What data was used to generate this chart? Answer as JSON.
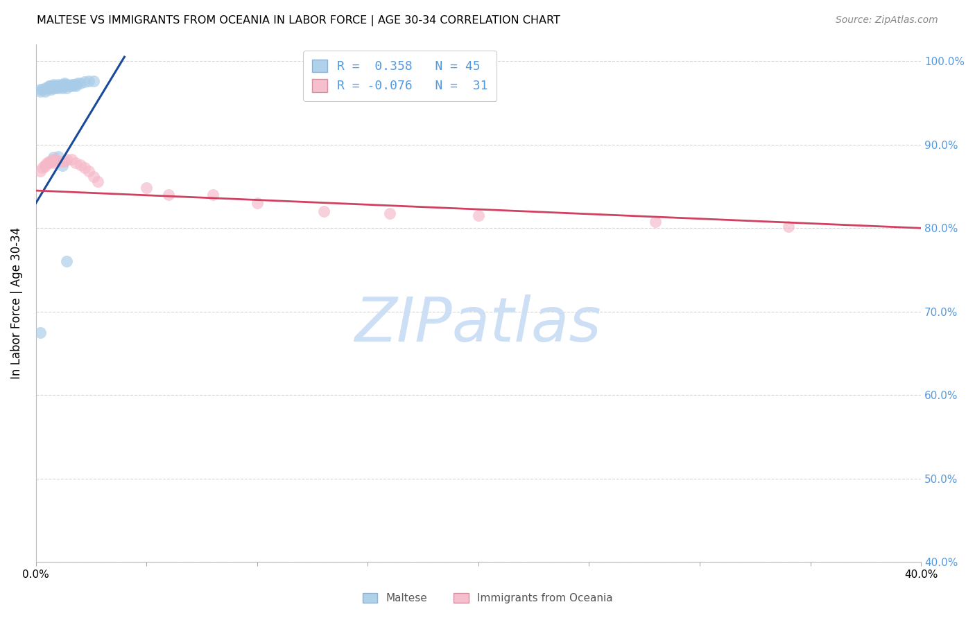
{
  "title": "MALTESE VS IMMIGRANTS FROM OCEANIA IN LABOR FORCE | AGE 30-34 CORRELATION CHART",
  "source": "Source: ZipAtlas.com",
  "ylabel": "In Labor Force | Age 30-34",
  "xlim": [
    0.0,
    0.4
  ],
  "ylim": [
    0.4,
    1.02
  ],
  "ytick_vals": [
    0.4,
    0.5,
    0.6,
    0.7,
    0.8,
    0.9,
    1.0
  ],
  "ytick_labels_right": [
    "40.0%",
    "50.0%",
    "60.0%",
    "70.0%",
    "80.0%",
    "90.0%",
    "100.0%"
  ],
  "xtick_vals": [
    0.0,
    0.05,
    0.1,
    0.15,
    0.2,
    0.25,
    0.3,
    0.35,
    0.4
  ],
  "blue_R": 0.358,
  "blue_N": 45,
  "pink_R": -0.076,
  "pink_N": 31,
  "blue_fill": "#a8cce8",
  "pink_fill": "#f5b8c8",
  "blue_line_color": "#1a4a9a",
  "pink_line_color": "#d04060",
  "grid_color": "#cccccc",
  "right_tick_color": "#5599dd",
  "watermark_text": "ZIPatlas",
  "watermark_color": "#ccdff5",
  "legend_label1": "Maltese",
  "legend_label2": "Immigrants from Oceania",
  "blue_line_x0": 0.0,
  "blue_line_y0": 0.83,
  "blue_line_x1": 0.04,
  "blue_line_y1": 1.005,
  "pink_line_x0": 0.0,
  "pink_line_y0": 0.845,
  "pink_line_x1": 0.4,
  "pink_line_y1": 0.8,
  "blue_x": [
    0.002,
    0.002,
    0.003,
    0.004,
    0.004,
    0.005,
    0.005,
    0.006,
    0.006,
    0.006,
    0.007,
    0.007,
    0.008,
    0.008,
    0.008,
    0.009,
    0.009,
    0.01,
    0.01,
    0.01,
    0.011,
    0.012,
    0.012,
    0.012,
    0.013,
    0.013,
    0.013,
    0.014,
    0.014,
    0.015,
    0.016,
    0.016,
    0.017,
    0.018,
    0.018,
    0.019,
    0.02,
    0.022,
    0.024,
    0.026,
    0.008,
    0.01,
    0.012,
    0.014,
    0.002
  ],
  "blue_y": [
    0.964,
    0.966,
    0.966,
    0.964,
    0.968,
    0.966,
    0.968,
    0.97,
    0.968,
    0.97,
    0.968,
    0.966,
    0.97,
    0.968,
    0.972,
    0.97,
    0.968,
    0.97,
    0.968,
    0.972,
    0.97,
    0.972,
    0.97,
    0.968,
    0.97,
    0.972,
    0.974,
    0.968,
    0.972,
    0.97,
    0.972,
    0.97,
    0.972,
    0.972,
    0.97,
    0.974,
    0.974,
    0.975,
    0.976,
    0.976,
    0.885,
    0.886,
    0.875,
    0.76,
    0.675
  ],
  "pink_x": [
    0.002,
    0.003,
    0.004,
    0.004,
    0.005,
    0.006,
    0.006,
    0.007,
    0.008,
    0.008,
    0.009,
    0.01,
    0.012,
    0.013,
    0.014,
    0.016,
    0.018,
    0.02,
    0.022,
    0.024,
    0.026,
    0.028,
    0.05,
    0.06,
    0.08,
    0.1,
    0.13,
    0.16,
    0.2,
    0.28,
    0.34
  ],
  "pink_y": [
    0.868,
    0.872,
    0.874,
    0.876,
    0.878,
    0.878,
    0.88,
    0.88,
    0.882,
    0.878,
    0.882,
    0.88,
    0.88,
    0.88,
    0.882,
    0.882,
    0.878,
    0.876,
    0.872,
    0.868,
    0.862,
    0.856,
    0.848,
    0.84,
    0.84,
    0.83,
    0.82,
    0.818,
    0.815,
    0.808,
    0.802
  ]
}
